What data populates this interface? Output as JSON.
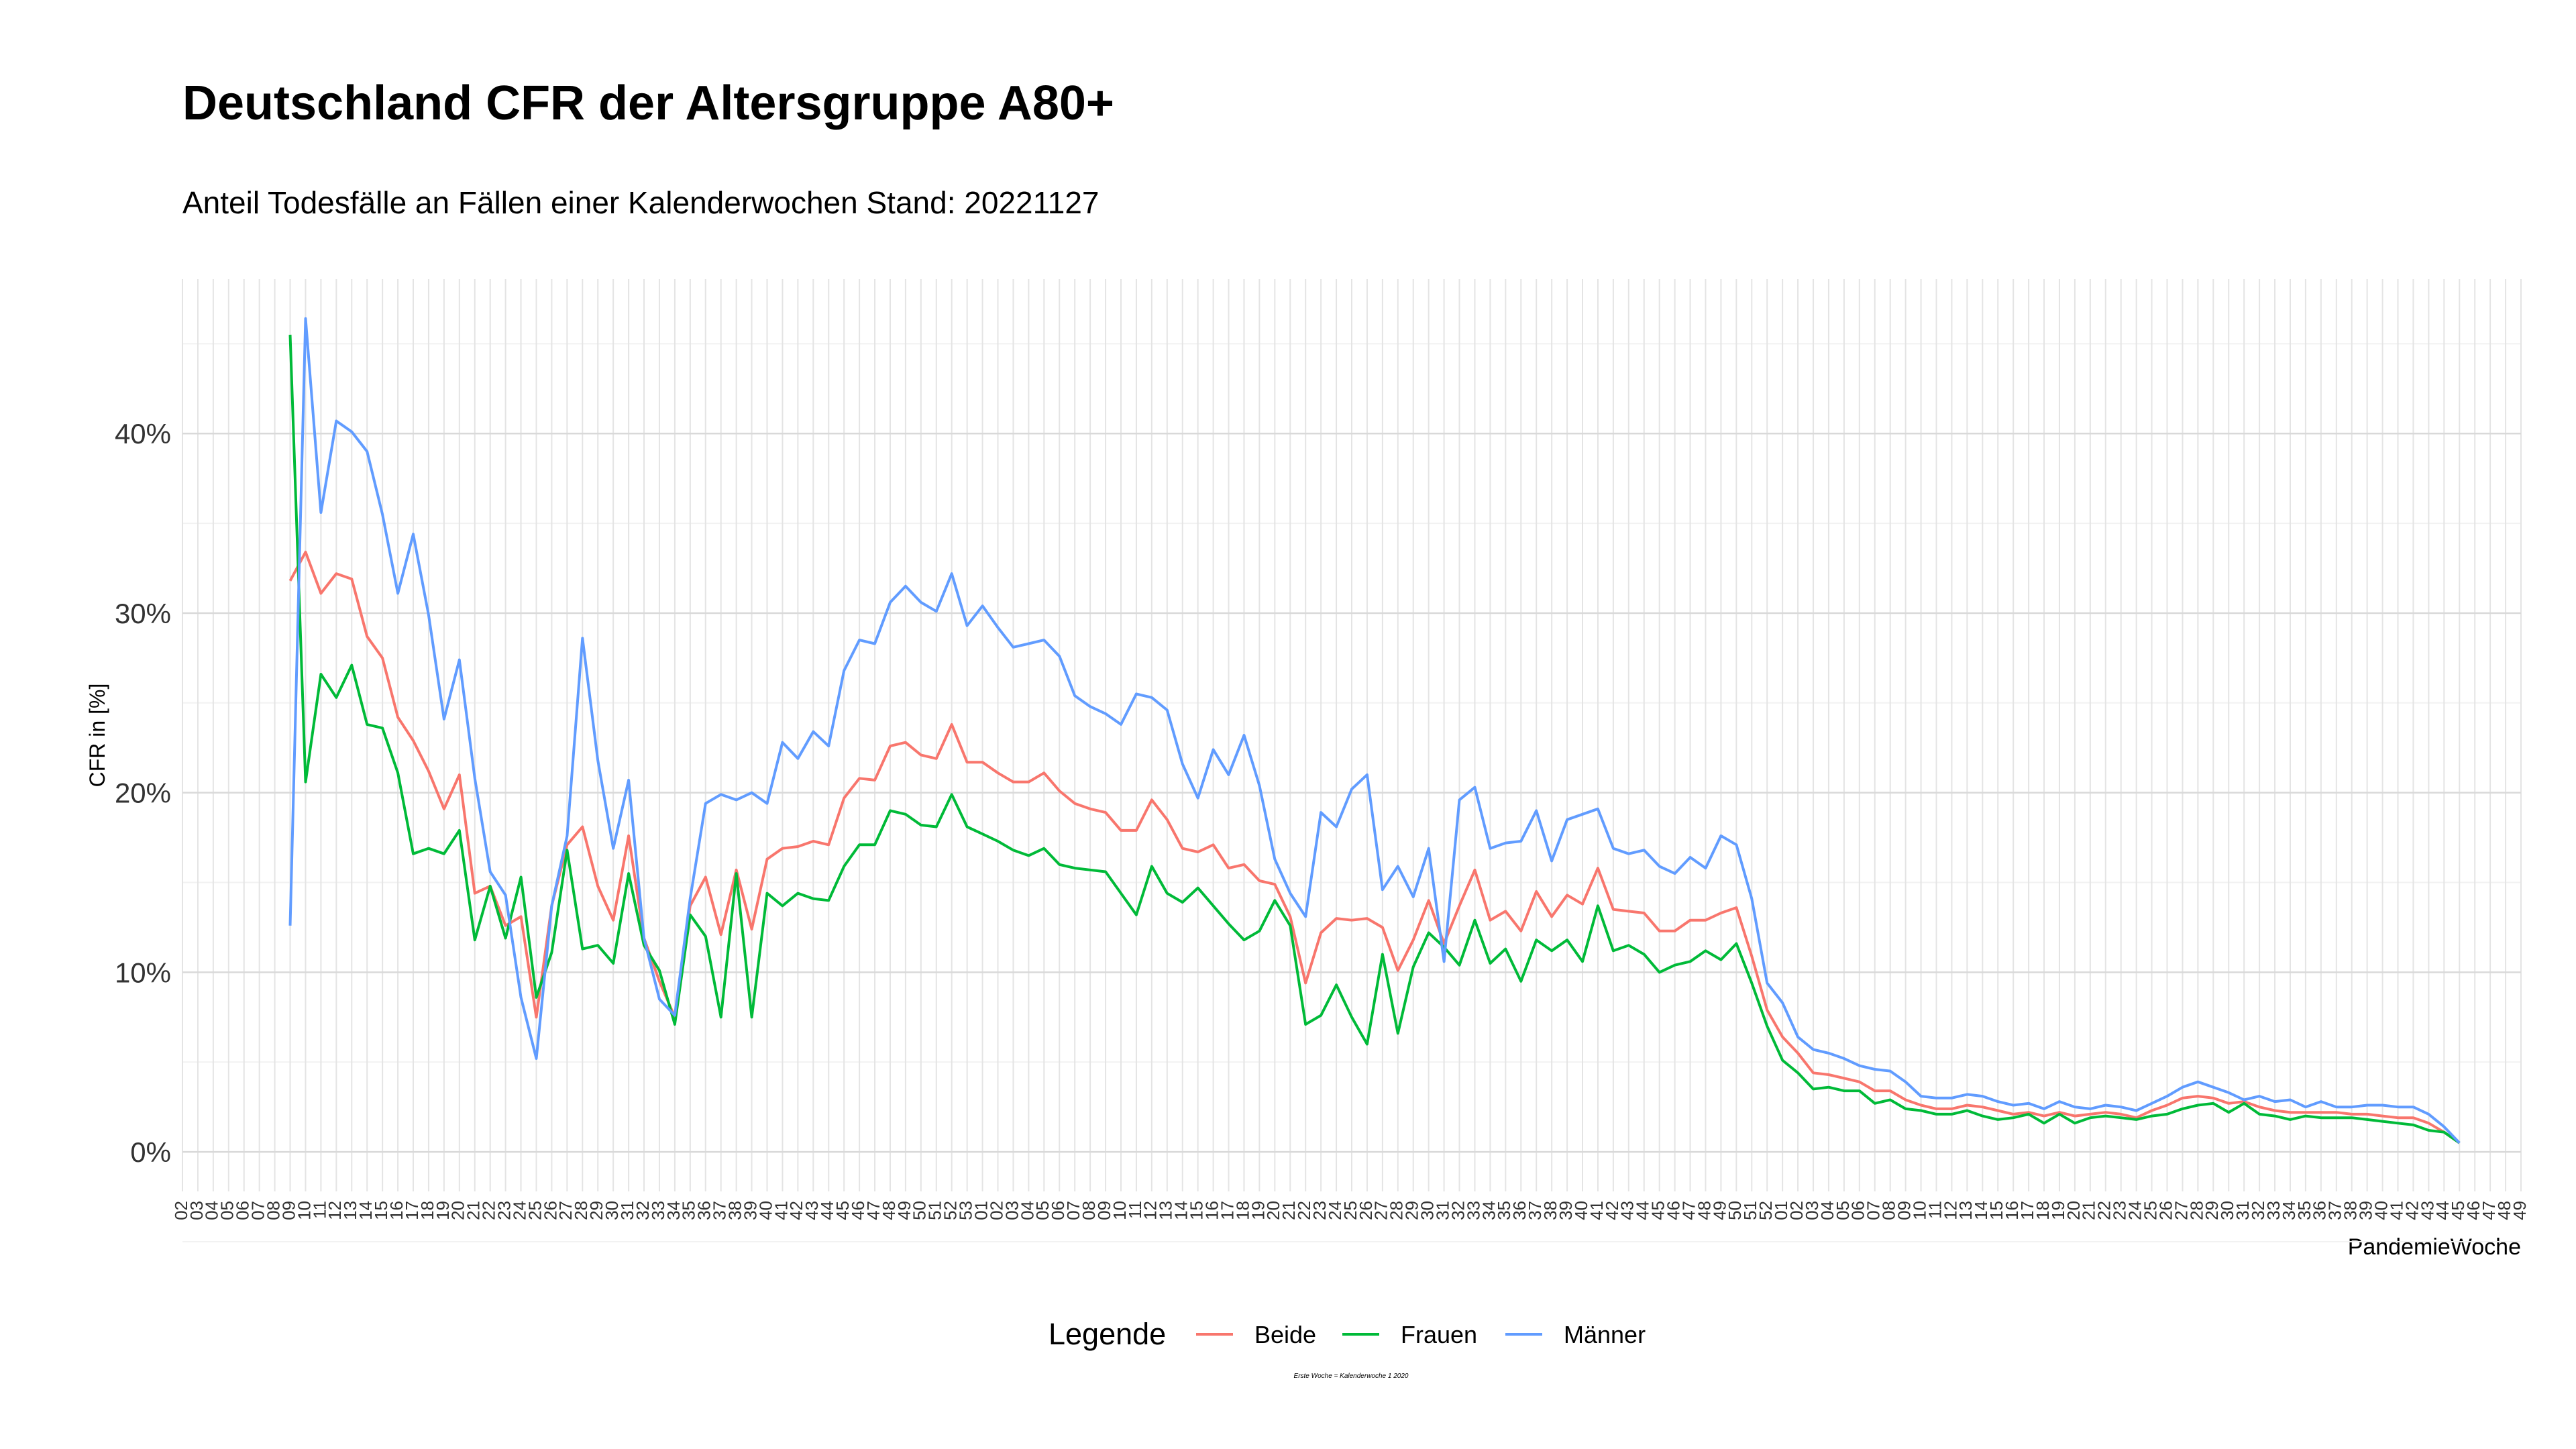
{
  "chart_data": {
    "type": "line",
    "title": "Deutschland CFR der Altersgruppe A80+",
    "subtitle": "Anteil Todesfälle an Fällen einer Kalenderwochen Stand: 20221127",
    "x_label": "PandemieWoche",
    "y_label": "CFR in [%]",
    "legend_title": "Legende",
    "legend_position": "bottom",
    "caption": "Erste Woche = Kalenderwoche 1 2020",
    "grid": true,
    "ylim": [
      -2.2,
      48.6
    ],
    "yticks": [
      {
        "value": 0,
        "label": "0%"
      },
      {
        "value": 10,
        "label": "10%"
      },
      {
        "value": 20,
        "label": "20%"
      },
      {
        "value": 30,
        "label": "30%"
      },
      {
        "value": 40,
        "label": "40%"
      }
    ],
    "categories": [
      "02",
      "03",
      "04",
      "05",
      "06",
      "07",
      "08",
      "09",
      "10",
      "11",
      "12",
      "13",
      "14",
      "15",
      "16",
      "17",
      "18",
      "19",
      "20",
      "21",
      "22",
      "23",
      "24",
      "25",
      "26",
      "27",
      "28",
      "29",
      "30",
      "31",
      "32",
      "33",
      "34",
      "35",
      "36",
      "37",
      "38",
      "39",
      "40",
      "41",
      "42",
      "43",
      "44",
      "45",
      "46",
      "47",
      "48",
      "49",
      "50",
      "51",
      "52",
      "53",
      "01",
      "02",
      "03",
      "04",
      "05",
      "06",
      "07",
      "08",
      "09",
      "10",
      "11",
      "12",
      "13",
      "14",
      "15",
      "16",
      "17",
      "18",
      "19",
      "20",
      "21",
      "22",
      "23",
      "24",
      "25",
      "26",
      "27",
      "28",
      "29",
      "30",
      "31",
      "32",
      "33",
      "34",
      "35",
      "36",
      "37",
      "38",
      "39",
      "40",
      "41",
      "42",
      "43",
      "44",
      "45",
      "46",
      "47",
      "48",
      "49",
      "50",
      "51",
      "52",
      "01",
      "02",
      "03",
      "04",
      "05",
      "06",
      "07",
      "08",
      "09",
      "10",
      "11",
      "12",
      "13",
      "14",
      "15",
      "16",
      "17",
      "18",
      "19",
      "20",
      "21",
      "22",
      "23",
      "24",
      "25",
      "26",
      "27",
      "28",
      "29",
      "30",
      "31",
      "32",
      "33",
      "34",
      "35",
      "36",
      "37",
      "38",
      "39",
      "40",
      "41",
      "42",
      "43",
      "44",
      "45",
      "46",
      "47",
      "48",
      "49"
    ],
    "series": [
      {
        "name": "Beide",
        "color": "#F8766D",
        "values": [
          null,
          null,
          null,
          null,
          null,
          null,
          null,
          31.8,
          33.4,
          31.1,
          32.2,
          31.9,
          28.7,
          27.5,
          24.2,
          22.9,
          21.2,
          19.1,
          21.0,
          14.4,
          14.8,
          12.6,
          13.1,
          7.5,
          13.7,
          17.1,
          18.1,
          14.8,
          12.9,
          17.6,
          11.9,
          9.5,
          7.5,
          13.7,
          15.3,
          12.1,
          15.7,
          12.4,
          16.3,
          16.9,
          17.0,
          17.3,
          17.1,
          19.7,
          20.8,
          20.7,
          22.6,
          22.8,
          22.1,
          21.9,
          23.8,
          21.7,
          21.7,
          21.1,
          20.6,
          20.6,
          21.1,
          20.1,
          19.4,
          19.1,
          18.9,
          17.9,
          17.9,
          19.6,
          18.5,
          16.9,
          16.7,
          17.1,
          15.8,
          16.0,
          15.1,
          14.9,
          13.1,
          9.4,
          12.2,
          13.0,
          12.9,
          13.0,
          12.5,
          10.1,
          11.8,
          14.0,
          11.6,
          13.7,
          15.7,
          12.9,
          13.4,
          12.3,
          14.5,
          13.1,
          14.3,
          13.8,
          15.8,
          13.5,
          13.4,
          13.3,
          12.3,
          12.3,
          12.9,
          12.9,
          13.3,
          13.6,
          10.9,
          7.9,
          6.4,
          5.5,
          4.4,
          4.3,
          4.1,
          3.9,
          3.4,
          3.4,
          2.9,
          2.6,
          2.4,
          2.4,
          2.6,
          2.5,
          2.3,
          2.1,
          2.2,
          2.0,
          2.2,
          2.0,
          2.1,
          2.2,
          2.1,
          1.9,
          2.3,
          2.6,
          3.0,
          3.1,
          3.0,
          2.7,
          2.8,
          2.5,
          2.3,
          2.2,
          2.2,
          2.2,
          2.2,
          2.1,
          2.1,
          2.0,
          1.9,
          1.9,
          1.6,
          1.1,
          0.5,
          null,
          null,
          null,
          null
        ]
      },
      {
        "name": "Frauen",
        "color": "#00BA38",
        "values": [
          null,
          null,
          null,
          null,
          null,
          null,
          null,
          45.5,
          20.6,
          26.6,
          25.3,
          27.1,
          23.8,
          23.6,
          21.1,
          16.6,
          16.9,
          16.6,
          17.9,
          11.8,
          14.8,
          11.9,
          15.3,
          8.6,
          11.1,
          16.8,
          11.3,
          11.5,
          10.5,
          15.5,
          11.5,
          10.1,
          7.1,
          13.2,
          12.0,
          7.5,
          15.5,
          7.5,
          14.4,
          13.7,
          14.4,
          14.1,
          14.0,
          15.9,
          17.1,
          17.1,
          19.0,
          18.8,
          18.2,
          18.1,
          19.9,
          18.1,
          17.7,
          17.3,
          16.8,
          16.5,
          16.9,
          16.0,
          15.8,
          15.7,
          15.6,
          14.4,
          13.2,
          15.9,
          14.4,
          13.9,
          14.7,
          13.7,
          12.7,
          11.8,
          12.3,
          14.0,
          12.6,
          7.1,
          7.6,
          9.3,
          7.5,
          6.0,
          11.0,
          6.6,
          10.3,
          12.2,
          11.4,
          10.4,
          12.9,
          10.5,
          11.3,
          9.5,
          11.8,
          11.2,
          11.8,
          10.6,
          13.7,
          11.2,
          11.5,
          11.0,
          10.0,
          10.4,
          10.6,
          11.2,
          10.7,
          11.6,
          9.4,
          7.0,
          5.1,
          4.4,
          3.5,
          3.6,
          3.4,
          3.4,
          2.7,
          2.9,
          2.4,
          2.3,
          2.1,
          2.1,
          2.3,
          2.0,
          1.8,
          1.9,
          2.1,
          1.6,
          2.1,
          1.6,
          1.9,
          2.0,
          1.9,
          1.8,
          2.0,
          2.1,
          2.4,
          2.6,
          2.7,
          2.2,
          2.7,
          2.1,
          2.0,
          1.8,
          2.0,
          1.9,
          1.9,
          1.9,
          1.8,
          1.7,
          1.6,
          1.5,
          1.2,
          1.1,
          0.5,
          null,
          null,
          null,
          null
        ]
      },
      {
        "name": "Männer",
        "color": "#619CFF",
        "values": [
          null,
          null,
          null,
          null,
          null,
          null,
          null,
          12.6,
          46.4,
          35.6,
          40.7,
          40.1,
          39.0,
          35.5,
          31.1,
          34.4,
          29.9,
          24.1,
          27.4,
          20.8,
          15.6,
          14.3,
          8.6,
          5.2,
          13.7,
          17.6,
          28.6,
          21.8,
          16.9,
          20.7,
          11.9,
          8.5,
          7.6,
          14.1,
          19.4,
          19.9,
          19.6,
          20.0,
          19.4,
          22.8,
          21.9,
          23.4,
          22.6,
          26.8,
          28.5,
          28.3,
          30.6,
          31.5,
          30.6,
          30.1,
          32.2,
          29.3,
          30.4,
          29.2,
          28.1,
          28.3,
          28.5,
          27.6,
          25.4,
          24.8,
          24.4,
          23.8,
          25.5,
          25.3,
          24.6,
          21.6,
          19.7,
          22.4,
          21.0,
          23.2,
          20.4,
          16.3,
          14.4,
          13.1,
          18.9,
          18.1,
          20.2,
          21.0,
          14.6,
          15.9,
          14.2,
          16.9,
          10.6,
          19.6,
          20.3,
          16.9,
          17.2,
          17.3,
          19.0,
          16.2,
          18.5,
          18.8,
          19.1,
          16.9,
          16.6,
          16.8,
          15.9,
          15.5,
          16.4,
          15.8,
          17.6,
          17.1,
          14.1,
          9.4,
          8.3,
          6.4,
          5.7,
          5.5,
          5.2,
          4.8,
          4.6,
          4.5,
          3.9,
          3.1,
          3.0,
          3.0,
          3.2,
          3.1,
          2.8,
          2.6,
          2.7,
          2.4,
          2.8,
          2.5,
          2.4,
          2.6,
          2.5,
          2.3,
          2.7,
          3.1,
          3.6,
          3.9,
          3.6,
          3.3,
          2.9,
          3.1,
          2.8,
          2.9,
          2.5,
          2.8,
          2.5,
          2.5,
          2.6,
          2.6,
          2.5,
          2.5,
          2.1,
          1.4,
          0.5,
          null,
          null,
          null,
          null
        ]
      }
    ]
  }
}
